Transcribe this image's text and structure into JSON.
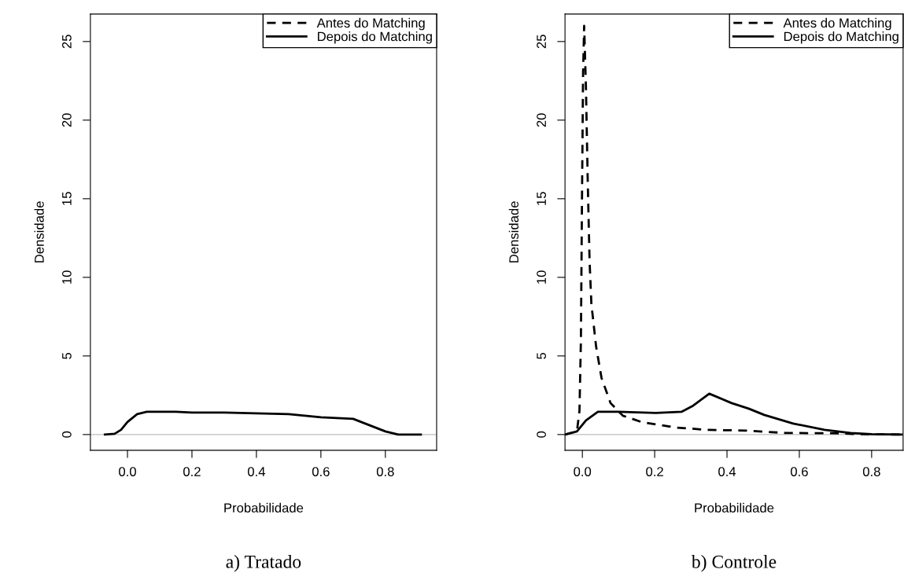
{
  "chart_data": [
    {
      "type": "line",
      "xlabel": "Probabilidade",
      "ylabel": "Densidade",
      "xlim": [
        -0.115,
        0.959
      ],
      "ylim": [
        -1,
        26.75
      ],
      "xticks": [
        {
          "value": 0,
          "label": "0.0"
        },
        0.2,
        0.4,
        0.6,
        0.8
      ],
      "yticks": [
        0,
        5,
        10,
        15,
        20,
        25
      ],
      "grid": false,
      "legend": "top right",
      "marker": "none",
      "annotations": [
        "a) Tratado"
      ],
      "ref_lines": [
        {
          "axis": "y",
          "value": 0,
          "color": "#bebebe"
        }
      ],
      "series": [
        {
          "name": "Antes do Matching",
          "color": "#000000",
          "line_style": "dashed"
        },
        {
          "name": "Depois do Matching",
          "color": "#000000",
          "line_style": "solid",
          "x": [
            -0.07,
            -0.04,
            -0.02,
            0.0,
            0.03,
            0.06,
            0.15,
            0.2,
            0.3,
            0.4,
            0.5,
            0.6,
            0.7,
            0.75,
            0.8,
            0.84,
            0.91
          ],
          "values": [
            0,
            0.05,
            0.3,
            0.8,
            1.3,
            1.45,
            1.45,
            1.4,
            1.4,
            1.35,
            1.3,
            1.1,
            1.0,
            0.6,
            0.2,
            0.0,
            0.0
          ]
        }
      ]
    },
    {
      "type": "line",
      "xlabel": "Probabilidade",
      "ylabel": "Densidade",
      "xlim": [
        -0.048,
        0.887
      ],
      "ylim": [
        -1,
        26.75
      ],
      "xticks": [
        {
          "value": 0,
          "label": "0.0"
        },
        0.2,
        0.4,
        0.6,
        0.8
      ],
      "yticks": [
        0,
        5,
        10,
        15,
        20,
        25
      ],
      "grid": false,
      "legend": "top right",
      "marker": "none",
      "annotations": [
        "b) Controle"
      ],
      "ref_lines": [
        {
          "axis": "y",
          "value": 0,
          "color": "#bebebe"
        }
      ],
      "series": [
        {
          "name": "Antes do Matching",
          "color": "#000000",
          "line_style": "dashed",
          "x": [
            -0.048,
            -0.015,
            -0.008,
            -0.004,
            -0.001,
            0.002,
            0.005,
            0.01,
            0.015,
            0.02,
            0.025,
            0.038,
            0.053,
            0.078,
            0.112,
            0.163,
            0.257,
            0.344,
            0.453,
            0.562,
            0.707,
            0.779,
            0.88
          ],
          "values": [
            0,
            0.2,
            1.5,
            6,
            15,
            23,
            26,
            22,
            16,
            11,
            8.3,
            5.6,
            3.6,
            2.0,
            1.2,
            0.8,
            0.45,
            0.3,
            0.25,
            0.1,
            0.08,
            0.02,
            0
          ]
        },
        {
          "name": "Depois do Matching",
          "color": "#000000",
          "line_style": "solid",
          "x": [
            -0.048,
            -0.015,
            0.01,
            0.043,
            0.1,
            0.203,
            0.275,
            0.304,
            0.351,
            0.413,
            0.46,
            0.503,
            0.583,
            0.67,
            0.742,
            0.8,
            0.883
          ],
          "values": [
            0,
            0.2,
            0.9,
            1.45,
            1.45,
            1.37,
            1.45,
            1.8,
            2.6,
            2.0,
            1.65,
            1.25,
            0.7,
            0.3,
            0.1,
            0.02,
            0
          ]
        }
      ]
    }
  ]
}
